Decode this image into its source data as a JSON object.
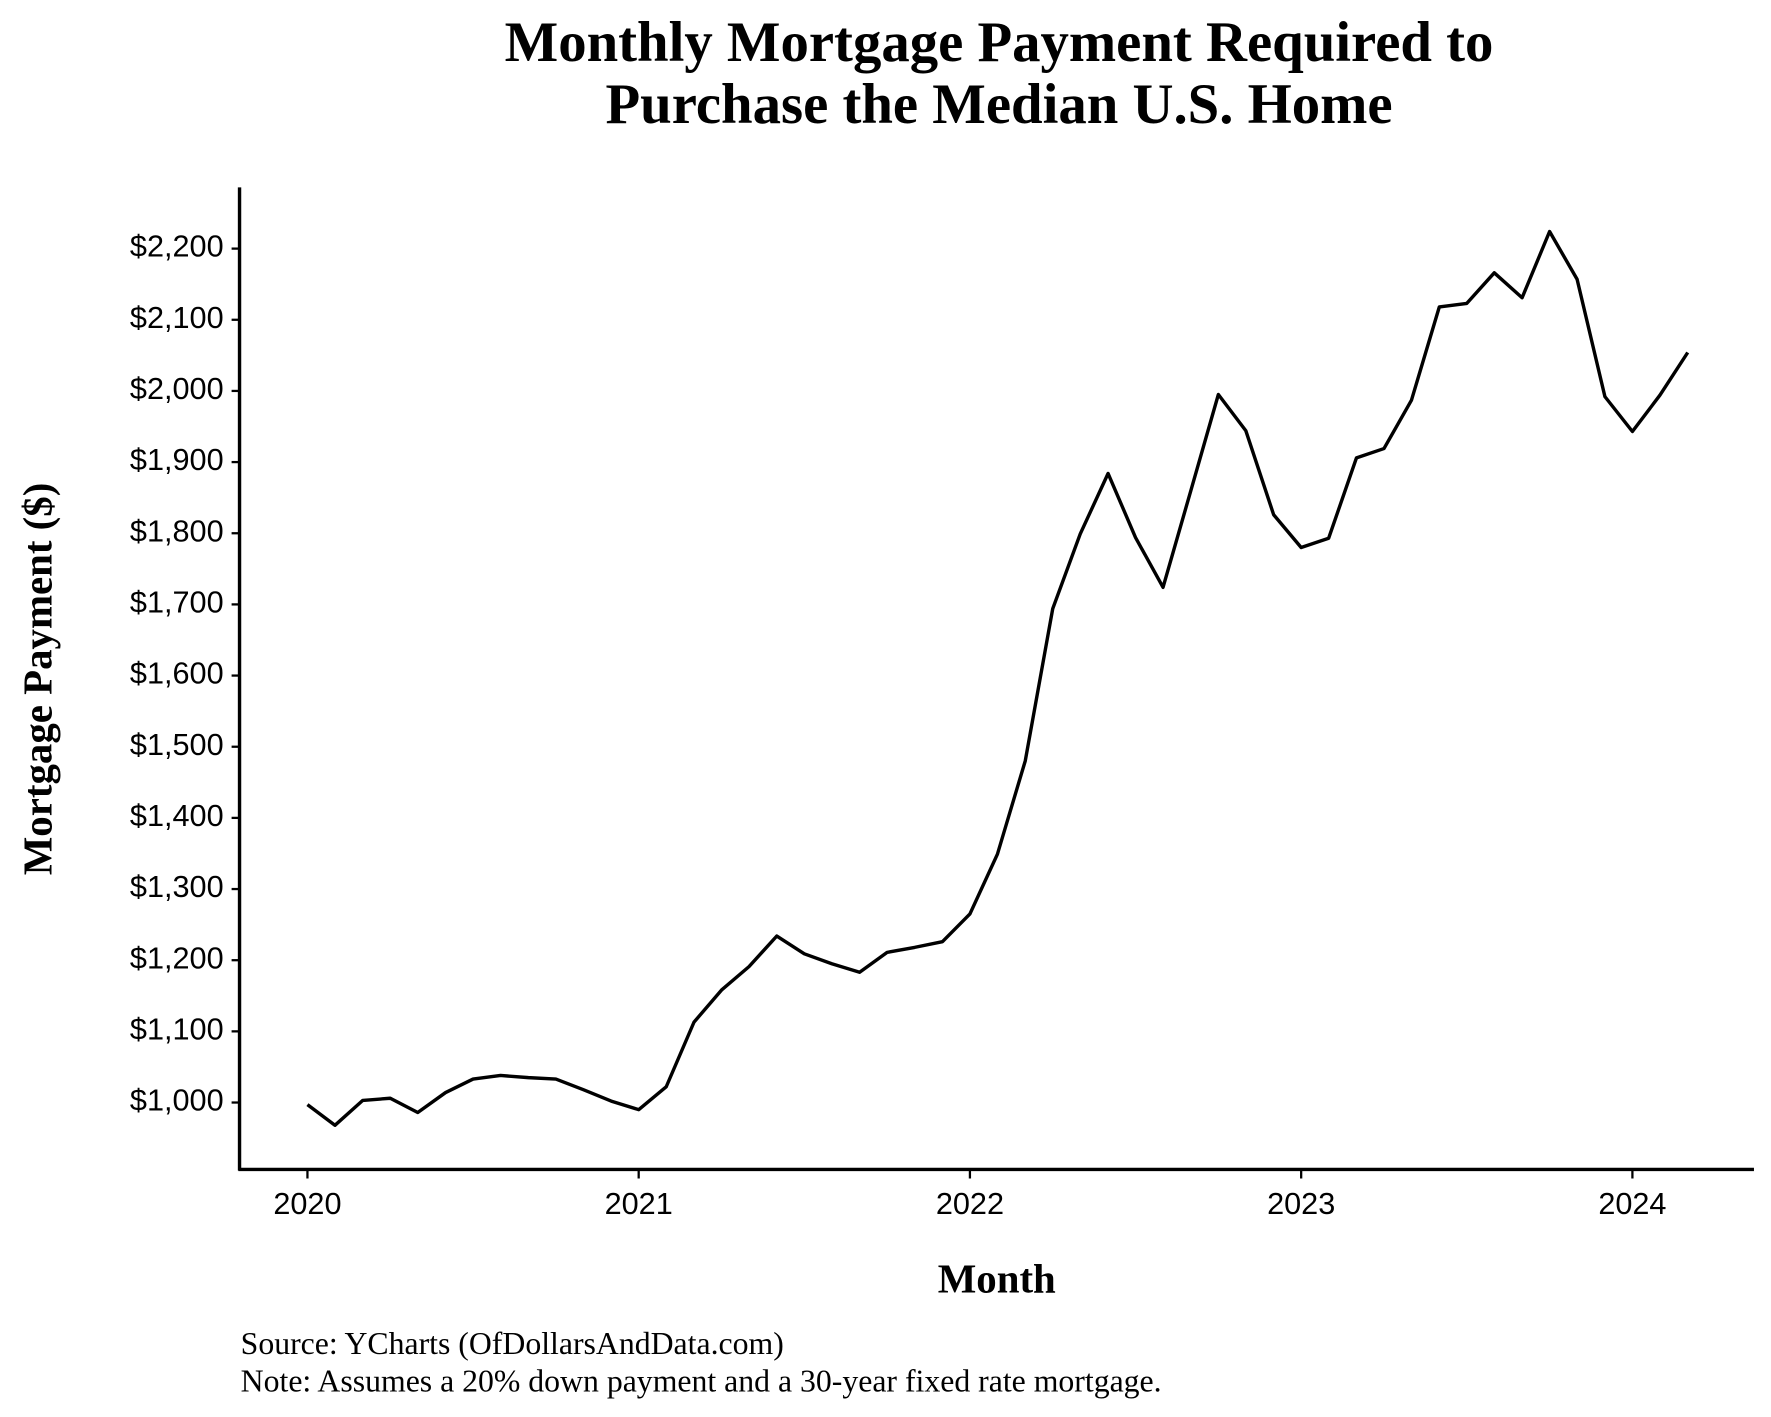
{
  "chart_data": {
    "type": "line",
    "title": [
      "Monthly Mortgage Payment Required to",
      "Purchase the Median U.S. Home"
    ],
    "x_label": "Month",
    "y_label": "Mortgage Payment ($)",
    "notes": [
      "Source: YCharts (OfDollarsAndData.com)",
      "Note: Assumes a 20% down payment and a 30-year fixed rate mortgage."
    ],
    "color": "#000000",
    "x": [
      2020,
      2020.083,
      2020.167,
      2020.25,
      2020.333,
      2020.417,
      2020.5,
      2020.583,
      2020.667,
      2020.75,
      2020.833,
      2020.917,
      2021,
      2021.083,
      2021.167,
      2021.25,
      2021.333,
      2021.417,
      2021.5,
      2021.583,
      2021.667,
      2021.75,
      2021.833,
      2021.917,
      2022,
      2022.083,
      2022.167,
      2022.25,
      2022.333,
      2022.417,
      2022.5,
      2022.583,
      2022.667,
      2022.75,
      2022.833,
      2022.917,
      2023,
      2023.083,
      2023.167,
      2023.25,
      2023.333,
      2023.417,
      2023.5,
      2023.583,
      2023.667,
      2023.75,
      2023.833,
      2023.917,
      2024,
      2024.083,
      2024.167
    ],
    "values": [
      997,
      968,
      1003,
      1006,
      986,
      1014,
      1033,
      1038,
      1035,
      1033,
      1018,
      1002,
      990,
      1022,
      1113,
      1158,
      1191,
      1234,
      1209,
      1195,
      1183,
      1211,
      1218,
      1226,
      1265,
      1349,
      1480,
      1694,
      1799,
      1884,
      1794,
      1724,
      1860,
      1995,
      1944,
      1826,
      1780,
      1793,
      1906,
      1919,
      1987,
      2118,
      2123,
      2166,
      2131,
      2224,
      2157,
      1992,
      1943,
      1994,
      2054
    ],
    "xlim": [
      2019.795,
      2024.367
    ],
    "xticks": [
      2020,
      2021,
      2022,
      2023,
      2024
    ],
    "ylim": [
      906,
      2286
    ],
    "yticks": [
      {
        "value": 1000,
        "label": "$1,000"
      },
      {
        "value": 1100,
        "label": "$1,100"
      },
      {
        "value": 1200,
        "label": "$1,200"
      },
      {
        "value": 1300,
        "label": "$1,300"
      },
      {
        "value": 1400,
        "label": "$1,400"
      },
      {
        "value": 1500,
        "label": "$1,500"
      },
      {
        "value": 1600,
        "label": "$1,600"
      },
      {
        "value": 1700,
        "label": "$1,700"
      },
      {
        "value": 1800,
        "label": "$1,800"
      },
      {
        "value": 1900,
        "label": "$1,900"
      },
      {
        "value": 2000,
        "label": "$2,000"
      },
      {
        "value": 2100,
        "label": "$2,100"
      },
      {
        "value": 2200,
        "label": "$2,200"
      }
    ],
    "grid": false
  }
}
